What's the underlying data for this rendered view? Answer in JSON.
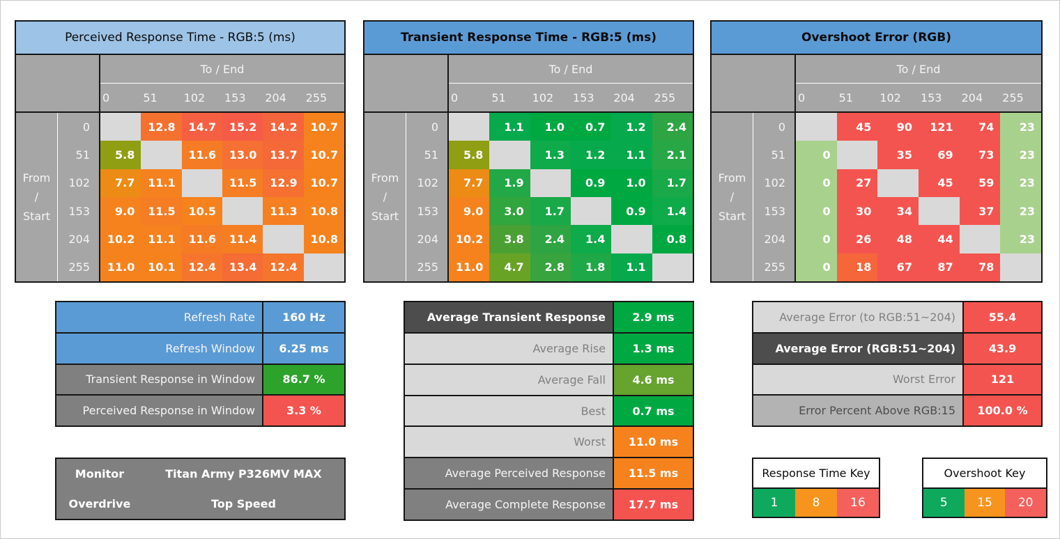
{
  "chart_data": [
    {
      "type": "heatmap",
      "title": "Perceived Response Time - RGB:5 (ms)",
      "title_bg": "#9DC3E6",
      "title_bold": false,
      "col_group_label": "To / End",
      "row_group_label": [
        "From",
        "/",
        "Start"
      ],
      "levels": [
        "0",
        "51",
        "102",
        "153",
        "204",
        "255"
      ],
      "values": [
        [
          "",
          "12.8",
          "14.7",
          "15.2",
          "14.2",
          "10.7"
        ],
        [
          "5.8",
          "",
          "11.6",
          "13.0",
          "13.7",
          "10.7"
        ],
        [
          "7.7",
          "11.1",
          "",
          "11.5",
          "12.9",
          "10.7"
        ],
        [
          "9.0",
          "11.5",
          "10.5",
          "",
          "11.3",
          "10.8"
        ],
        [
          "10.2",
          "11.1",
          "11.6",
          "11.4",
          "",
          "10.8"
        ],
        [
          "11.0",
          "10.1",
          "12.4",
          "13.4",
          "12.4",
          ""
        ]
      ],
      "colors": [
        [
          "#D9D9D9",
          "#F57130",
          "#F56042",
          "#F55B47",
          "#F5653D",
          "#F6821E"
        ],
        [
          "#8F9E13",
          "#D9D9D9",
          "#F57C24",
          "#F57032",
          "#F56938",
          "#F6821E"
        ],
        [
          "#EC8B15",
          "#F6811F",
          "#D9D9D9",
          "#F57D23",
          "#F57031",
          "#F6821E"
        ],
        [
          "#F6821E",
          "#F57D23",
          "#F6821E",
          "#D9D9D9",
          "#F57F21",
          "#F6821E"
        ],
        [
          "#F6821E",
          "#F6811F",
          "#F57C24",
          "#F57E22",
          "#D9D9D9",
          "#F6821E"
        ],
        [
          "#F6821E",
          "#F6821E",
          "#F5752C",
          "#F56C35",
          "#F5752C",
          "#D9D9D9"
        ]
      ]
    },
    {
      "type": "heatmap",
      "title": "Transient Response Time - RGB:5 (ms)",
      "title_bg": "#5B9BD5",
      "title_bold": true,
      "col_group_label": "To / End",
      "row_group_label": [
        "From",
        "/",
        "Start"
      ],
      "levels": [
        "0",
        "51",
        "102",
        "153",
        "204",
        "255"
      ],
      "values": [
        [
          "",
          "1.1",
          "1.0",
          "0.7",
          "1.2",
          "2.4"
        ],
        [
          "5.8",
          "",
          "1.3",
          "1.2",
          "1.1",
          "2.1"
        ],
        [
          "7.7",
          "1.9",
          "",
          "0.9",
          "1.0",
          "1.7"
        ],
        [
          "9.0",
          "3.0",
          "1.7",
          "",
          "0.9",
          "1.4"
        ],
        [
          "10.2",
          "3.8",
          "2.4",
          "1.4",
          "",
          "0.8"
        ],
        [
          "11.0",
          "4.7",
          "2.8",
          "1.8",
          "1.1",
          ""
        ]
      ],
      "colors": [
        [
          "#D9D9D9",
          "#06A94B",
          "#00A842",
          "#00A842",
          "#06A94B",
          "#2EA542"
        ],
        [
          "#8F9E13",
          "#D9D9D9",
          "#0FAA4A",
          "#06A94B",
          "#06A94B",
          "#27A745"
        ],
        [
          "#EC8B15",
          "#22A846",
          "#D9D9D9",
          "#00A842",
          "#00A842",
          "#1AA948"
        ],
        [
          "#F6821E",
          "#31A53E",
          "#1AA948",
          "#D9D9D9",
          "#00A842",
          "#0FAA4A"
        ],
        [
          "#F6821E",
          "#4BA033",
          "#2EA542",
          "#0FAA4A",
          "#D9D9D9",
          "#00A842"
        ],
        [
          "#F6821E",
          "#68A326",
          "#38A43F",
          "#1FA847",
          "#06A94B",
          "#D9D9D9"
        ]
      ]
    },
    {
      "type": "heatmap",
      "title": "Overshoot Error (RGB)",
      "title_bg": "#5B9BD5",
      "title_bold": true,
      "col_group_label": "To / End",
      "row_group_label": [
        "From",
        "/",
        "Start"
      ],
      "levels": [
        "0",
        "51",
        "102",
        "153",
        "204",
        "255"
      ],
      "values": [
        [
          "",
          "45",
          "90",
          "121",
          "74",
          "23"
        ],
        [
          "0",
          "",
          "35",
          "69",
          "73",
          "23"
        ],
        [
          "0",
          "27",
          "",
          "45",
          "59",
          "23"
        ],
        [
          "0",
          "30",
          "34",
          "",
          "37",
          "23"
        ],
        [
          "0",
          "26",
          "48",
          "44",
          "",
          "23"
        ],
        [
          "0",
          "18",
          "67",
          "87",
          "78",
          ""
        ]
      ],
      "colors": [
        [
          "#D9D9D9",
          "#F4544F",
          "#F4544F",
          "#F4544F",
          "#F4544F",
          "#A9D18E"
        ],
        [
          "#A9D18E",
          "#D9D9D9",
          "#F4544F",
          "#F4544F",
          "#F4544F",
          "#A9D18E"
        ],
        [
          "#A9D18E",
          "#F4544F",
          "#D9D9D9",
          "#F4544F",
          "#F4544F",
          "#A9D18E"
        ],
        [
          "#A9D18E",
          "#F4544F",
          "#F4544F",
          "#D9D9D9",
          "#F4544F",
          "#A9D18E"
        ],
        [
          "#A9D18E",
          "#F4544F",
          "#F4544F",
          "#F4544F",
          "#D9D9D9",
          "#A9D18E"
        ],
        [
          "#A9D18E",
          "#F5663B",
          "#F4544F",
          "#F4544F",
          "#F4544F",
          "#D9D9D9"
        ]
      ]
    }
  ],
  "summary_left": {
    "rows": [
      {
        "label": "Refresh Rate",
        "value": "160 Hz",
        "label_bg": "#5B9BD5",
        "label_color": "#f5f5f5",
        "label_bold": false,
        "value_bg": "#5B9BD5"
      },
      {
        "label": "Refresh Window",
        "value": "6.25 ms",
        "label_bg": "#5B9BD5",
        "label_color": "#f5f5f5",
        "label_bold": false,
        "value_bg": "#5B9BD5"
      },
      {
        "label": "Transient Response in Window",
        "value": "86.7 %",
        "label_bg": "#808080",
        "label_color": "#f5f5f5",
        "label_bold": false,
        "value_bg": "#2EA32C"
      },
      {
        "label": "Perceived Response in Window",
        "value": "3.3 %",
        "label_bg": "#808080",
        "label_color": "#f5f5f5",
        "label_bold": false,
        "value_bg": "#F4544F"
      }
    ]
  },
  "monitor_info": {
    "rows": [
      {
        "label": "Monitor",
        "value": "Titan Army P326MV MAX"
      },
      {
        "label": "Overdrive",
        "value": "Top Speed"
      }
    ]
  },
  "summary_middle": {
    "rows": [
      {
        "label": "Average Transient Response",
        "value": "2.9 ms",
        "label_bg": "#4D4D4D",
        "label_color": "#ffffff",
        "label_bold": true,
        "value_bg": "#00A842"
      },
      {
        "label": "Average Rise",
        "value": "1.3 ms",
        "label_bg": "#D9D9D9",
        "label_color": "#808080",
        "label_bold": false,
        "value_bg": "#00A842"
      },
      {
        "label": "Average Fall",
        "value": "4.6 ms",
        "label_bg": "#D9D9D9",
        "label_color": "#808080",
        "label_bold": false,
        "value_bg": "#66A32F"
      },
      {
        "label": "Best",
        "value": "0.7 ms",
        "label_bg": "#D9D9D9",
        "label_color": "#808080",
        "label_bold": false,
        "value_bg": "#00A842"
      },
      {
        "label": "Worst",
        "value": "11.0 ms",
        "label_bg": "#D9D9D9",
        "label_color": "#808080",
        "label_bold": false,
        "value_bg": "#F6821E"
      },
      {
        "label": "Average Perceived Response",
        "value": "11.5 ms",
        "label_bg": "#808080",
        "label_color": "#f5f5f5",
        "label_bold": false,
        "value_bg": "#F6821E"
      },
      {
        "label": "Average Complete Response",
        "value": "17.7 ms",
        "label_bg": "#808080",
        "label_color": "#f5f5f5",
        "label_bold": false,
        "value_bg": "#F4544F"
      }
    ]
  },
  "summary_right": {
    "rows": [
      {
        "label": "Average Error (to RGB:51~204)",
        "value": "55.4",
        "label_bg": "#D9D9D9",
        "label_color": "#808080",
        "label_bold": false,
        "value_bg": "#F4544F"
      },
      {
        "label": "Average Error (RGB:51~204)",
        "value": "43.9",
        "label_bg": "#4D4D4D",
        "label_color": "#ffffff",
        "label_bold": true,
        "value_bg": "#F4544F"
      },
      {
        "label": "Worst Error",
        "value": "121",
        "label_bg": "#D9D9D9",
        "label_color": "#808080",
        "label_bold": false,
        "value_bg": "#F4544F"
      },
      {
        "label": "Error Percent Above RGB:15",
        "value": "100.0 %",
        "label_bg": "#B3B3B3",
        "label_color": "#4d4d4d",
        "label_bold": false,
        "value_bg": "#F4544F"
      }
    ]
  },
  "keys": [
    {
      "title": "Response Time Key",
      "stops": [
        {
          "label": "1",
          "bg": "#0FA95E"
        },
        {
          "label": "8",
          "bg": "#F7941E"
        },
        {
          "label": "16",
          "bg": "#F4605C"
        }
      ]
    },
    {
      "title": "Overshoot Key",
      "stops": [
        {
          "label": "5",
          "bg": "#0FA95E"
        },
        {
          "label": "15",
          "bg": "#F7941E"
        },
        {
          "label": "20",
          "bg": "#F4605C"
        }
      ]
    }
  ]
}
